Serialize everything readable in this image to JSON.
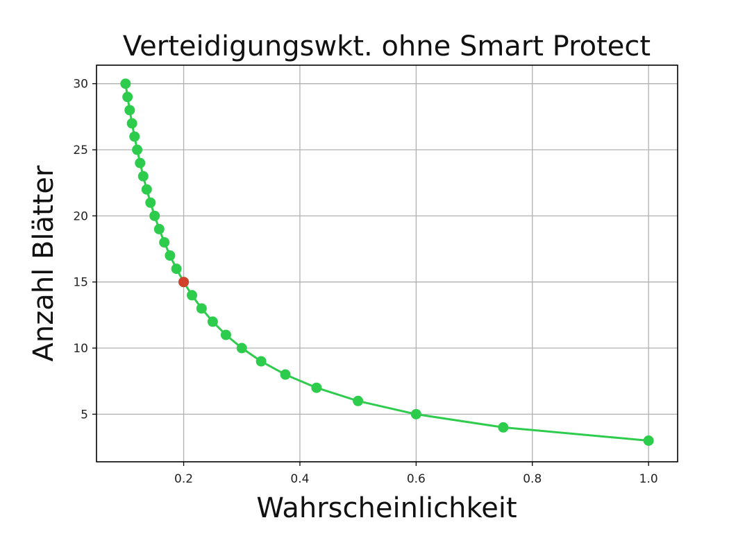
{
  "chart_data": {
    "type": "line",
    "title": "Verteidigungswkt. ohne Smart Protect",
    "xlabel": "Wahrscheinlichkeit",
    "ylabel": "Anzahl Blätter",
    "xlim": [
      0.05,
      1.05
    ],
    "ylim": [
      1.4,
      31.4
    ],
    "xticks": [
      0.2,
      0.4,
      0.6,
      0.8,
      1.0
    ],
    "xtick_labels": [
      "0.2",
      "0.4",
      "0.6",
      "0.8",
      "1.0"
    ],
    "yticks": [
      5,
      10,
      15,
      20,
      25,
      30
    ],
    "ytick_labels": [
      "5",
      "10",
      "15",
      "20",
      "25",
      "30"
    ],
    "grid": true,
    "series": [
      {
        "color": "#2ecc4d",
        "marker": "circle",
        "points": [
          {
            "x": 1.0,
            "y": 3
          },
          {
            "x": 0.75,
            "y": 4
          },
          {
            "x": 0.6,
            "y": 5
          },
          {
            "x": 0.5,
            "y": 6
          },
          {
            "x": 0.4286,
            "y": 7
          },
          {
            "x": 0.375,
            "y": 8
          },
          {
            "x": 0.3333,
            "y": 9
          },
          {
            "x": 0.3,
            "y": 10
          },
          {
            "x": 0.2727,
            "y": 11
          },
          {
            "x": 0.25,
            "y": 12
          },
          {
            "x": 0.2308,
            "y": 13
          },
          {
            "x": 0.2143,
            "y": 14
          },
          {
            "x": 0.2,
            "y": 15
          },
          {
            "x": 0.1875,
            "y": 16
          },
          {
            "x": 0.1765,
            "y": 17
          },
          {
            "x": 0.1667,
            "y": 18
          },
          {
            "x": 0.1579,
            "y": 19
          },
          {
            "x": 0.15,
            "y": 20
          },
          {
            "x": 0.1429,
            "y": 21
          },
          {
            "x": 0.1364,
            "y": 22
          },
          {
            "x": 0.1304,
            "y": 23
          },
          {
            "x": 0.125,
            "y": 24
          },
          {
            "x": 0.12,
            "y": 25
          },
          {
            "x": 0.1154,
            "y": 26
          },
          {
            "x": 0.1111,
            "y": 27
          },
          {
            "x": 0.1071,
            "y": 28
          },
          {
            "x": 0.1034,
            "y": 29
          },
          {
            "x": 0.1,
            "y": 30
          }
        ]
      }
    ],
    "highlight": {
      "x": 0.2,
      "y": 15,
      "color": "#d0402b"
    }
  }
}
